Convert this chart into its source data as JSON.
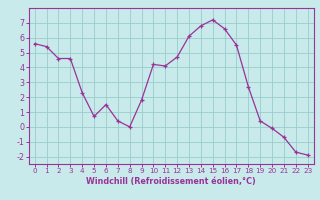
{
  "x": [
    0,
    1,
    2,
    3,
    4,
    5,
    6,
    7,
    8,
    9,
    10,
    11,
    12,
    13,
    14,
    15,
    16,
    17,
    18,
    19,
    20,
    21,
    22,
    23
  ],
  "y": [
    5.6,
    5.4,
    4.6,
    4.6,
    2.3,
    0.7,
    1.5,
    0.4,
    0.0,
    1.8,
    4.2,
    4.1,
    4.7,
    6.1,
    6.8,
    7.2,
    6.6,
    5.5,
    2.7,
    0.4,
    -0.1,
    -0.7,
    -1.7,
    -1.9
  ],
  "line_color": "#993399",
  "marker": "+",
  "marker_color": "#993399",
  "bg_color": "#c8eaea",
  "grid_color": "#99cccc",
  "xlabel": "Windchill (Refroidissement éolien,°C)",
  "xlabel_color": "#993399",
  "xtick_color": "#993399",
  "ytick_color": "#993399",
  "spine_color": "#993399",
  "xlim": [
    -0.5,
    23.5
  ],
  "ylim": [
    -2.5,
    8.0
  ],
  "yticks": [
    -2,
    -1,
    0,
    1,
    2,
    3,
    4,
    5,
    6,
    7
  ],
  "xticks": [
    0,
    1,
    2,
    3,
    4,
    5,
    6,
    7,
    8,
    9,
    10,
    11,
    12,
    13,
    14,
    15,
    16,
    17,
    18,
    19,
    20,
    21,
    22,
    23
  ],
  "xtick_fontsize": 5.2,
  "ytick_fontsize": 5.8,
  "xlabel_fontsize": 5.8,
  "linewidth": 0.9,
  "markersize": 3.5,
  "markeredgewidth": 0.9
}
